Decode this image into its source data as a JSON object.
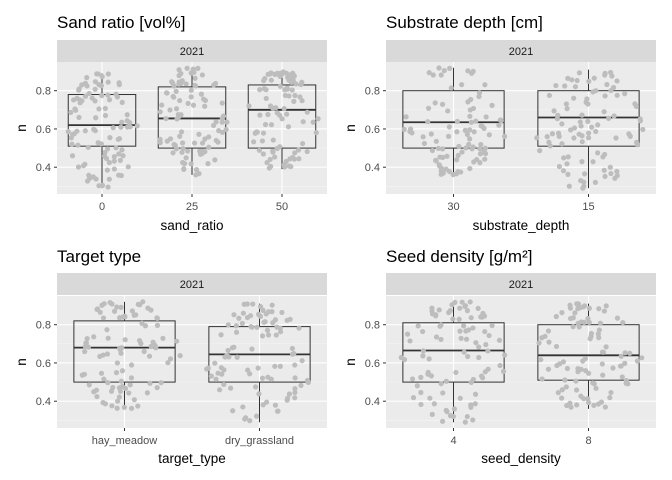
{
  "chart_data": [
    {
      "type": "boxplot",
      "title": "Sand ratio [vol%]",
      "facet_label": "2021",
      "xlabel": "sand_ratio",
      "ylabel": "n",
      "categories": [
        "0",
        "25",
        "50"
      ],
      "yticks": [
        0.4,
        0.6,
        0.8
      ],
      "ylim": [
        0.26,
        0.95
      ],
      "grid": true,
      "boxes": [
        {
          "whisker_low": 0.29,
          "q1": 0.51,
          "median": 0.62,
          "q3": 0.78,
          "whisker_high": 0.89
        },
        {
          "whisker_low": 0.36,
          "q1": 0.5,
          "median": 0.655,
          "q3": 0.82,
          "whisker_high": 0.92
        },
        {
          "whisker_low": 0.39,
          "q1": 0.5,
          "median": 0.7,
          "q3": 0.83,
          "whisker_high": 0.9
        }
      ]
    },
    {
      "type": "boxplot",
      "title": "Substrate depth [cm]",
      "facet_label": "2021",
      "xlabel": "substrate_depth",
      "ylabel": "n",
      "categories": [
        "30",
        "15"
      ],
      "yticks": [
        0.4,
        0.6,
        0.8
      ],
      "ylim": [
        0.26,
        0.95
      ],
      "grid": true,
      "boxes": [
        {
          "whisker_low": 0.36,
          "q1": 0.5,
          "median": 0.635,
          "q3": 0.8,
          "whisker_high": 0.92
        },
        {
          "whisker_low": 0.29,
          "q1": 0.51,
          "median": 0.66,
          "q3": 0.8,
          "whisker_high": 0.91
        }
      ]
    },
    {
      "type": "boxplot",
      "title": "Target type",
      "facet_label": "2021",
      "xlabel": "target_type",
      "ylabel": "n",
      "categories": [
        "hay_meadow",
        "dry_grassland"
      ],
      "yticks": [
        0.4,
        0.6,
        0.8
      ],
      "ylim": [
        0.26,
        0.95
      ],
      "grid": true,
      "boxes": [
        {
          "whisker_low": 0.36,
          "q1": 0.5,
          "median": 0.68,
          "q3": 0.82,
          "whisker_high": 0.92
        },
        {
          "whisker_low": 0.29,
          "q1": 0.5,
          "median": 0.645,
          "q3": 0.79,
          "whisker_high": 0.91
        }
      ]
    },
    {
      "type": "boxplot",
      "title": "Seed density [g/m²]",
      "facet_label": "2021",
      "xlabel": "seed_density",
      "ylabel": "n",
      "categories": [
        "4",
        "8"
      ],
      "yticks": [
        0.4,
        0.6,
        0.8
      ],
      "ylim": [
        0.26,
        0.95
      ],
      "grid": true,
      "boxes": [
        {
          "whisker_low": 0.29,
          "q1": 0.5,
          "median": 0.665,
          "q3": 0.81,
          "whisker_high": 0.92
        },
        {
          "whisker_low": 0.36,
          "q1": 0.51,
          "median": 0.64,
          "q3": 0.8,
          "whisker_high": 0.91
        }
      ]
    }
  ],
  "colors": {
    "panel_background": "#ebebeb",
    "strip_background": "#d9d9d9",
    "grid_major": "#ffffff",
    "grid_minor": "#f5f5f5",
    "box_line": "#333333",
    "points": "#bdbdbd",
    "tick_text": "#4d4d4d"
  }
}
